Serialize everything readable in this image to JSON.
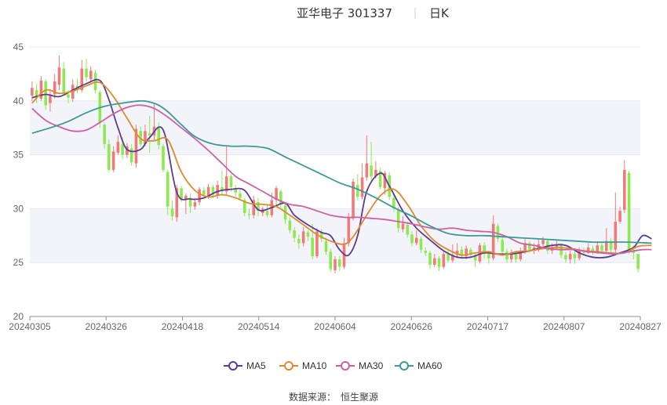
{
  "header": {
    "stock_name": "亚华电子",
    "stock_code": "301337",
    "period": "日K"
  },
  "source": {
    "label": "数据来源：",
    "value": "恒生聚源"
  },
  "colors": {
    "up": "#f07a7a",
    "down": "#8cea4e",
    "band": "#f3f4f9",
    "grid": "#e6e8ef",
    "axis": "#8a8f99"
  },
  "chart_data": {
    "type": "candlestick",
    "title": "亚华电子 301337 日K",
    "ylim": [
      20,
      45
    ],
    "yticks": [
      20,
      25,
      30,
      35,
      40,
      45
    ],
    "xticks": [
      "20240305",
      "20240326",
      "20240418",
      "20240514",
      "20240604",
      "20240626",
      "20240717",
      "20240807",
      "20240827"
    ],
    "legend_position": "bottom-center",
    "candles": [
      [
        40.5,
        41.2,
        40.0,
        41.8
      ],
      [
        41.0,
        40.3,
        39.8,
        41.6
      ],
      [
        40.2,
        41.9,
        40.0,
        42.3
      ],
      [
        41.8,
        39.6,
        39.2,
        42.0
      ],
      [
        39.8,
        40.6,
        39.0,
        41.0
      ],
      [
        40.6,
        41.8,
        40.2,
        42.5
      ],
      [
        41.5,
        43.1,
        41.0,
        44.2
      ],
      [
        43.0,
        40.8,
        40.5,
        43.6
      ],
      [
        40.6,
        40.3,
        39.8,
        41.0
      ],
      [
        40.2,
        41.5,
        39.9,
        42.0
      ],
      [
        41.4,
        41.0,
        40.7,
        42.0
      ],
      [
        41.0,
        43.0,
        40.8,
        43.8
      ],
      [
        43.0,
        42.2,
        41.8,
        43.9
      ],
      [
        42.0,
        42.8,
        41.7,
        43.2
      ],
      [
        42.6,
        41.0,
        40.7,
        42.9
      ],
      [
        40.8,
        38.0,
        37.5,
        41.0
      ],
      [
        37.8,
        36.0,
        35.6,
        38.0
      ],
      [
        36.0,
        33.6,
        33.4,
        36.4
      ],
      [
        33.6,
        35.3,
        33.4,
        35.8
      ],
      [
        35.2,
        36.2,
        35.0,
        36.8
      ],
      [
        36.0,
        35.0,
        34.6,
        36.6
      ],
      [
        35.0,
        35.8,
        34.7,
        36.1
      ],
      [
        35.6,
        34.3,
        34.0,
        36.0
      ],
      [
        34.2,
        37.4,
        33.8,
        37.8
      ],
      [
        37.2,
        36.0,
        35.8,
        37.6
      ],
      [
        36.0,
        37.2,
        35.8,
        37.8
      ],
      [
        37.0,
        36.8,
        35.2,
        38.6
      ],
      [
        36.8,
        37.6,
        36.3,
        39.8
      ],
      [
        37.5,
        35.9,
        35.5,
        38.0
      ],
      [
        35.8,
        33.6,
        33.4,
        36.0
      ],
      [
        33.4,
        30.2,
        29.4,
        33.6
      ],
      [
        30.0,
        29.3,
        28.9,
        30.8
      ],
      [
        29.2,
        31.9,
        28.8,
        32.2
      ],
      [
        31.9,
        30.8,
        30.6,
        32.1
      ],
      [
        30.9,
        31.2,
        29.5,
        31.4
      ],
      [
        31.0,
        30.2,
        29.6,
        31.4
      ],
      [
        30.2,
        30.6,
        29.9,
        31.0
      ],
      [
        30.6,
        31.8,
        30.3,
        32.0
      ],
      [
        31.7,
        31.3,
        31.0,
        32.0
      ],
      [
        31.2,
        32.0,
        30.9,
        32.3
      ],
      [
        32.0,
        31.3,
        31.0,
        32.2
      ],
      [
        31.2,
        32.2,
        30.9,
        32.6
      ],
      [
        32.0,
        31.6,
        31.2,
        33.5
      ],
      [
        31.6,
        33.0,
        31.3,
        35.8
      ],
      [
        33.0,
        32.0,
        31.6,
        33.2
      ],
      [
        31.9,
        31.5,
        31.1,
        32.2
      ],
      [
        31.4,
        31.0,
        30.8,
        31.8
      ],
      [
        30.8,
        29.6,
        29.3,
        31.0
      ],
      [
        29.5,
        29.4,
        29.0,
        30.0
      ],
      [
        29.4,
        30.8,
        29.1,
        31.2
      ],
      [
        30.6,
        29.8,
        29.3,
        31.0
      ],
      [
        29.6,
        30.0,
        29.3,
        30.2
      ],
      [
        29.8,
        29.4,
        29.2,
        30.4
      ],
      [
        29.4,
        30.8,
        29.2,
        31.5
      ],
      [
        30.8,
        31.9,
        30.3,
        32.1
      ],
      [
        31.6,
        30.4,
        30.1,
        31.8
      ],
      [
        30.3,
        29.0,
        28.6,
        30.5
      ],
      [
        28.9,
        28.0,
        27.7,
        29.2
      ],
      [
        28.0,
        27.3,
        26.9,
        28.3
      ],
      [
        27.2,
        26.8,
        26.3,
        27.6
      ],
      [
        26.8,
        27.9,
        26.5,
        28.3
      ],
      [
        27.8,
        27.4,
        27.0,
        28.0
      ],
      [
        27.3,
        25.6,
        25.3,
        28.6
      ],
      [
        25.6,
        27.9,
        25.4,
        28.2
      ],
      [
        27.8,
        27.2,
        26.9,
        28.1
      ],
      [
        27.0,
        26.0,
        25.7,
        27.3
      ],
      [
        26.0,
        24.4,
        24.1,
        26.3
      ],
      [
        24.3,
        25.3,
        24.0,
        25.6
      ],
      [
        25.3,
        24.6,
        24.2,
        25.6
      ],
      [
        24.6,
        26.8,
        24.4,
        27.3
      ],
      [
        26.8,
        29.2,
        26.5,
        29.6
      ],
      [
        29.1,
        32.5,
        28.9,
        32.8
      ],
      [
        32.2,
        31.1,
        30.8,
        33.2
      ],
      [
        31.1,
        32.9,
        30.9,
        34.2
      ],
      [
        32.9,
        34.2,
        32.6,
        36.8
      ],
      [
        34.0,
        33.0,
        32.6,
        36.2
      ],
      [
        33.0,
        33.6,
        32.8,
        34.4
      ],
      [
        33.5,
        32.0,
        31.8,
        33.8
      ],
      [
        31.9,
        33.3,
        31.3,
        33.5
      ],
      [
        33.1,
        31.1,
        30.8,
        33.4
      ],
      [
        31.0,
        30.0,
        29.7,
        31.2
      ],
      [
        29.9,
        28.2,
        27.8,
        30.2
      ],
      [
        28.1,
        28.6,
        27.8,
        29.3
      ],
      [
        28.5,
        27.6,
        27.3,
        28.8
      ],
      [
        27.6,
        26.8,
        26.5,
        27.9
      ],
      [
        26.8,
        27.3,
        26.6,
        28.0
      ],
      [
        27.2,
        26.2,
        25.9,
        27.4
      ],
      [
        26.1,
        25.9,
        25.6,
        26.4
      ],
      [
        25.9,
        24.8,
        24.4,
        26.1
      ],
      [
        24.8,
        25.4,
        24.6,
        25.8
      ],
      [
        25.4,
        24.6,
        24.2,
        25.6
      ],
      [
        24.6,
        25.8,
        24.4,
        26.1
      ],
      [
        25.8,
        25.2,
        25.0,
        26.2
      ],
      [
        25.2,
        25.7,
        25.0,
        26.7
      ],
      [
        25.7,
        26.1,
        25.4,
        26.8
      ],
      [
        26.2,
        25.6,
        25.3,
        26.5
      ],
      [
        25.6,
        26.3,
        25.3,
        26.6
      ],
      [
        26.2,
        25.7,
        25.4,
        26.4
      ],
      [
        25.7,
        25.2,
        24.6,
        25.9
      ],
      [
        25.1,
        26.6,
        24.9,
        26.8
      ],
      [
        26.6,
        25.8,
        25.4,
        26.9
      ],
      [
        25.8,
        25.4,
        24.9,
        26.1
      ],
      [
        25.4,
        28.6,
        25.2,
        29.4
      ],
      [
        28.4,
        27.2,
        26.9,
        28.6
      ],
      [
        27.1,
        26.0,
        25.6,
        27.4
      ],
      [
        26.0,
        25.3,
        25.0,
        26.3
      ],
      [
        25.3,
        25.8,
        25.0,
        26.2
      ],
      [
        25.8,
        25.3,
        25.0,
        26.1
      ],
      [
        25.3,
        26.0,
        25.1,
        26.4
      ],
      [
        26.0,
        26.8,
        25.8,
        27.2
      ],
      [
        26.8,
        26.2,
        25.9,
        27.0
      ],
      [
        26.2,
        26.4,
        25.8,
        26.8
      ],
      [
        26.3,
        26.7,
        26.0,
        27.2
      ],
      [
        26.7,
        27.1,
        26.4,
        27.4
      ],
      [
        27.0,
        26.1,
        25.8,
        27.2
      ],
      [
        26.1,
        26.4,
        25.8,
        26.8
      ],
      [
        26.4,
        26.6,
        26.2,
        27.0
      ],
      [
        26.6,
        25.7,
        25.4,
        26.8
      ],
      [
        25.7,
        25.3,
        25.0,
        26.0
      ],
      [
        25.3,
        25.8,
        24.9,
        26.1
      ],
      [
        25.8,
        25.4,
        24.9,
        26.0
      ],
      [
        25.4,
        26.1,
        25.2,
        26.4
      ],
      [
        26.0,
        25.9,
        25.6,
        26.4
      ],
      [
        25.9,
        26.4,
        25.8,
        26.8
      ],
      [
        26.3,
        26.0,
        25.7,
        26.6
      ],
      [
        26.0,
        26.6,
        25.8,
        26.9
      ],
      [
        26.6,
        26.1,
        25.8,
        26.8
      ],
      [
        26.1,
        27.0,
        25.9,
        28.2
      ],
      [
        27.0,
        26.2,
        25.8,
        27.3
      ],
      [
        26.2,
        28.8,
        25.9,
        31.5
      ],
      [
        28.8,
        29.8,
        28.6,
        30.2
      ],
      [
        29.9,
        33.6,
        29.6,
        34.5
      ],
      [
        33.3,
        26.2,
        25.8,
        33.5
      ],
      [
        26.2,
        25.9,
        25.3,
        26.6
      ],
      [
        25.8,
        24.4,
        24.1,
        25.6
      ]
    ],
    "series": [
      {
        "name": "MA5",
        "color": "#5b3b93",
        "x": [
          0,
          3,
          6,
          9,
          12,
          15,
          17,
          19,
          21,
          24,
          26,
          29,
          32,
          35,
          38,
          41,
          44,
          47,
          50,
          53,
          56,
          58,
          61,
          64,
          66,
          68,
          70,
          72,
          74,
          77,
          79,
          82,
          85,
          88,
          91,
          94,
          97,
          100,
          103,
          106,
          109,
          112,
          115,
          118,
          121,
          124,
          127,
          130,
          133,
          135,
          137
        ],
        "values": [
          40.3,
          40.6,
          40.4,
          41.0,
          41.6,
          41.9,
          40.1,
          37.5,
          35.5,
          35.5,
          36.6,
          37.3,
          31.5,
          30.9,
          31.0,
          31.6,
          31.8,
          31.7,
          29.9,
          30.1,
          30.5,
          29.4,
          28.5,
          27.8,
          27.5,
          26.2,
          25.7,
          27.5,
          31.6,
          33.3,
          32.1,
          29.8,
          28.2,
          27.1,
          26.1,
          25.5,
          25.5,
          25.9,
          25.8,
          25.8,
          26.0,
          26.3,
          26.6,
          26.6,
          25.9,
          25.5,
          25.5,
          25.9,
          26.4,
          27.5,
          27.2
        ]
      },
      {
        "name": "MA10",
        "color": "#e08a2a",
        "x": [
          0,
          3,
          6,
          9,
          12,
          15,
          18,
          21,
          24,
          27,
          30,
          33,
          36,
          39,
          42,
          45,
          48,
          51,
          54,
          57,
          60,
          63,
          66,
          69,
          71,
          74,
          77,
          80,
          83,
          86,
          89,
          92,
          95,
          98,
          101,
          104,
          107,
          110,
          113,
          116,
          119,
          122,
          125,
          128,
          131,
          134,
          137
        ],
        "values": [
          39.8,
          41.0,
          40.7,
          40.9,
          41.4,
          41.7,
          40.4,
          38.4,
          36.5,
          36.3,
          36.4,
          33.4,
          31.7,
          31.1,
          31.3,
          31.0,
          30.5,
          30.4,
          30.2,
          29.4,
          28.5,
          27.6,
          27.0,
          26.7,
          27.4,
          29.4,
          31.2,
          31.8,
          30.4,
          28.4,
          27.0,
          26.2,
          25.7,
          25.9,
          26.0,
          25.7,
          26.0,
          26.1,
          26.3,
          26.4,
          26.3,
          26.1,
          26.0,
          25.9,
          25.9,
          26.5,
          26.6
        ]
      },
      {
        "name": "MA30",
        "color": "#d060a6",
        "x": [
          0,
          3,
          6,
          9,
          12,
          15,
          18,
          21,
          24,
          27,
          30,
          33,
          36,
          39,
          42,
          45,
          48,
          51,
          54,
          57,
          60,
          63,
          66,
          69,
          72,
          75,
          78,
          81,
          84,
          87,
          90,
          93,
          96,
          99,
          102,
          105,
          108,
          111,
          114,
          117,
          120,
          123,
          126,
          129,
          132,
          135,
          137
        ],
        "values": [
          39.3,
          38.2,
          37.6,
          37.2,
          37.3,
          38.0,
          38.8,
          39.4,
          39.6,
          39.3,
          38.5,
          37.5,
          36.5,
          35.4,
          34.2,
          33.0,
          32.3,
          31.6,
          30.9,
          30.4,
          30.2,
          29.8,
          29.4,
          29.2,
          29.2,
          29.1,
          29.0,
          28.8,
          28.6,
          28.3,
          28.1,
          28.2,
          28.0,
          27.9,
          27.8,
          27.4,
          26.8,
          26.6,
          26.3,
          26.2,
          26.2,
          26.0,
          25.9,
          25.8,
          26.0,
          26.2,
          26.2
        ]
      },
      {
        "name": "MA60",
        "color": "#3a9b98",
        "x": [
          0,
          4,
          8,
          12,
          16,
          20,
          24,
          26,
          28,
          30,
          33,
          36,
          40,
          44,
          48,
          52,
          56,
          60,
          64,
          68,
          72,
          76,
          80,
          84,
          88,
          92,
          96,
          100,
          104,
          108,
          112,
          116,
          120,
          124,
          128,
          132,
          137
        ],
        "values": [
          37.0,
          37.5,
          38.1,
          38.9,
          39.5,
          39.8,
          40.0,
          39.9,
          39.6,
          39.0,
          37.8,
          36.7,
          36.0,
          35.8,
          35.8,
          35.6,
          34.8,
          34.0,
          33.2,
          32.4,
          31.8,
          31.0,
          30.1,
          29.3,
          28.4,
          27.7,
          27.5,
          27.5,
          27.4,
          27.3,
          27.2,
          27.1,
          27.0,
          26.9,
          26.9,
          26.9,
          26.8
        ]
      }
    ]
  }
}
